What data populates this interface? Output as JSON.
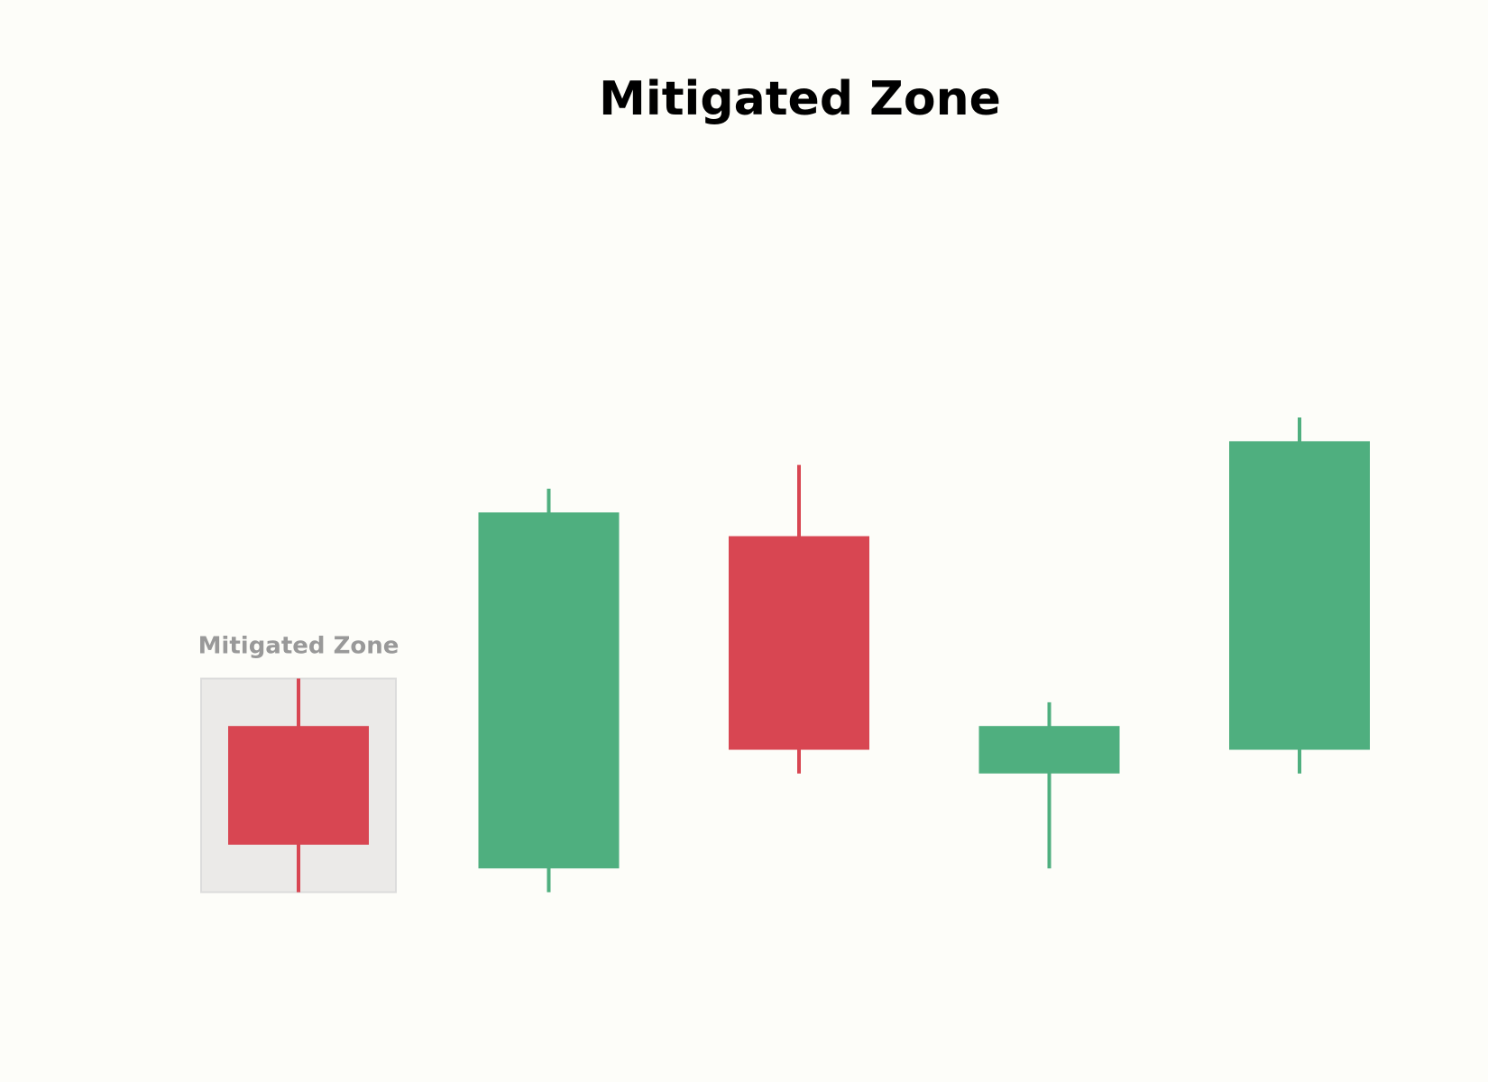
{
  "chart_data": {
    "type": "candlestick",
    "title": "Mitigated Zone",
    "ylim": [
      0,
      10
    ],
    "candles": [
      {
        "open": 3.0,
        "close": 2.0,
        "high": 3.4,
        "low": 1.6
      },
      {
        "open": 1.8,
        "close": 4.8,
        "high": 5.0,
        "low": 1.6
      },
      {
        "open": 4.6,
        "close": 2.8,
        "high": 5.2,
        "low": 2.6
      },
      {
        "open": 2.6,
        "close": 3.0,
        "high": 3.2,
        "low": 1.8
      },
      {
        "open": 2.8,
        "close": 5.4,
        "high": 5.6,
        "low": 2.6
      }
    ],
    "zone": {
      "candle_index": 0,
      "low": 1.6,
      "high": 3.4,
      "label": "Mitigated Zone"
    },
    "colors": {
      "bullish": "#4faf7f",
      "bearish": "#d84652",
      "zone_fill": "#ebeae8",
      "zone_stroke": "#dcdcdc",
      "zone_label": "#999999",
      "background": "#fdfdf9"
    }
  }
}
